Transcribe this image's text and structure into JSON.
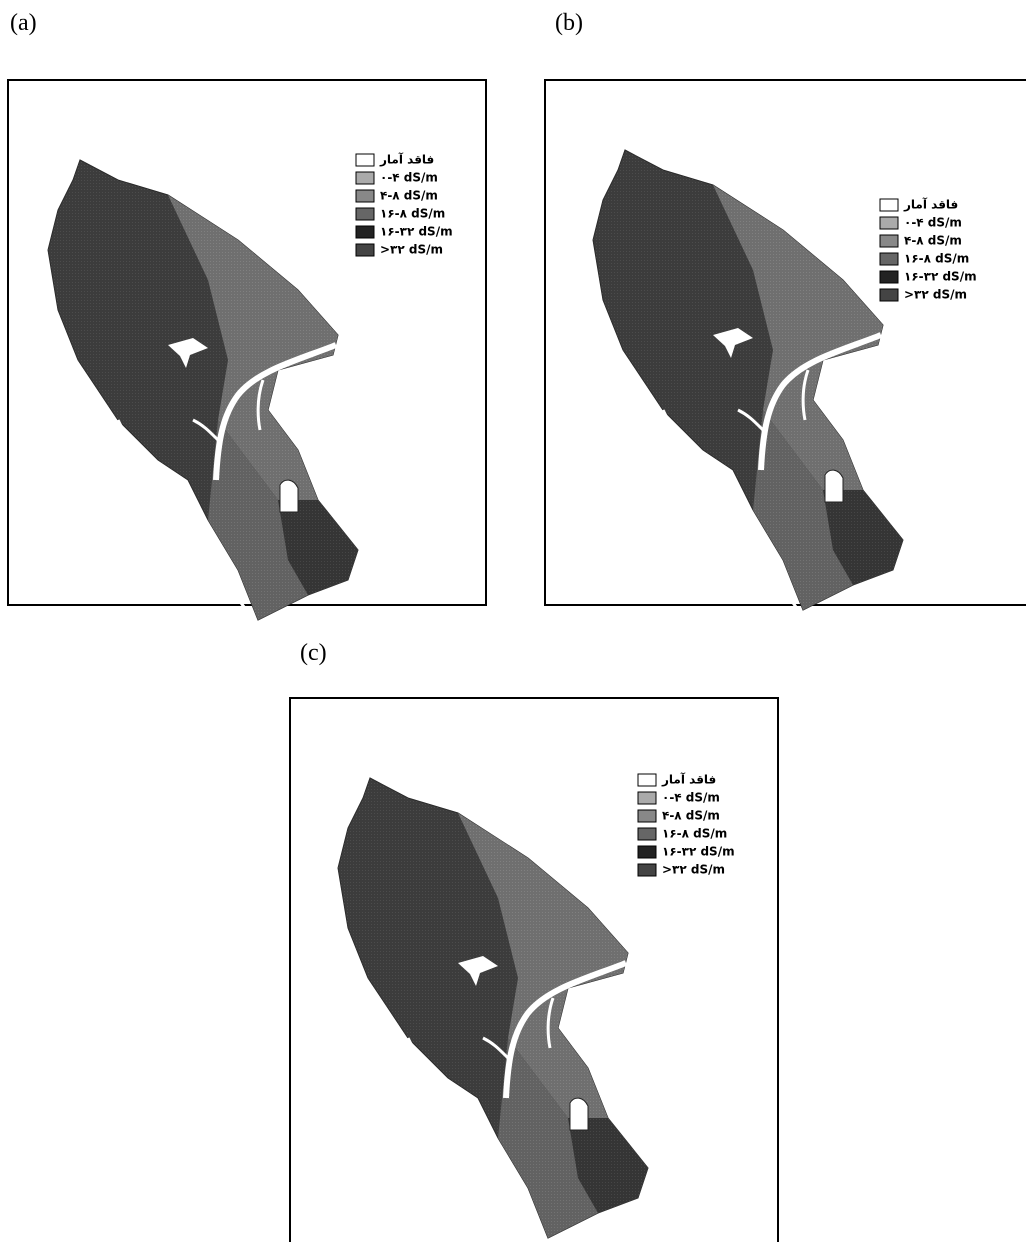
{
  "panels": [
    {
      "label": "(a)",
      "legend": [
        "فاقد آمار",
        "۰-۴ dS/m",
        "۴-۸ dS/m",
        "۱۶-۸ dS/m",
        "۱۶-۳۲ dS/m",
        ">۳۲ dS/m"
      ]
    },
    {
      "label": "(b)",
      "legend": [
        "فاقد آمار",
        "۰-۴ dS/m",
        "۴-۸ dS/m",
        "۱۶-۸ dS/m",
        "۱۶-۳۲ dS/m",
        ">۳۲ dS/m"
      ]
    },
    {
      "label": "(c)",
      "legend": [
        "فاقد آمار",
        "۰-۴ dS/m",
        "۴-۸ dS/m",
        "۱۶-۸ dS/m",
        "۱۶-۳۲ dS/m",
        ">۳۲ dS/m"
      ]
    }
  ]
}
